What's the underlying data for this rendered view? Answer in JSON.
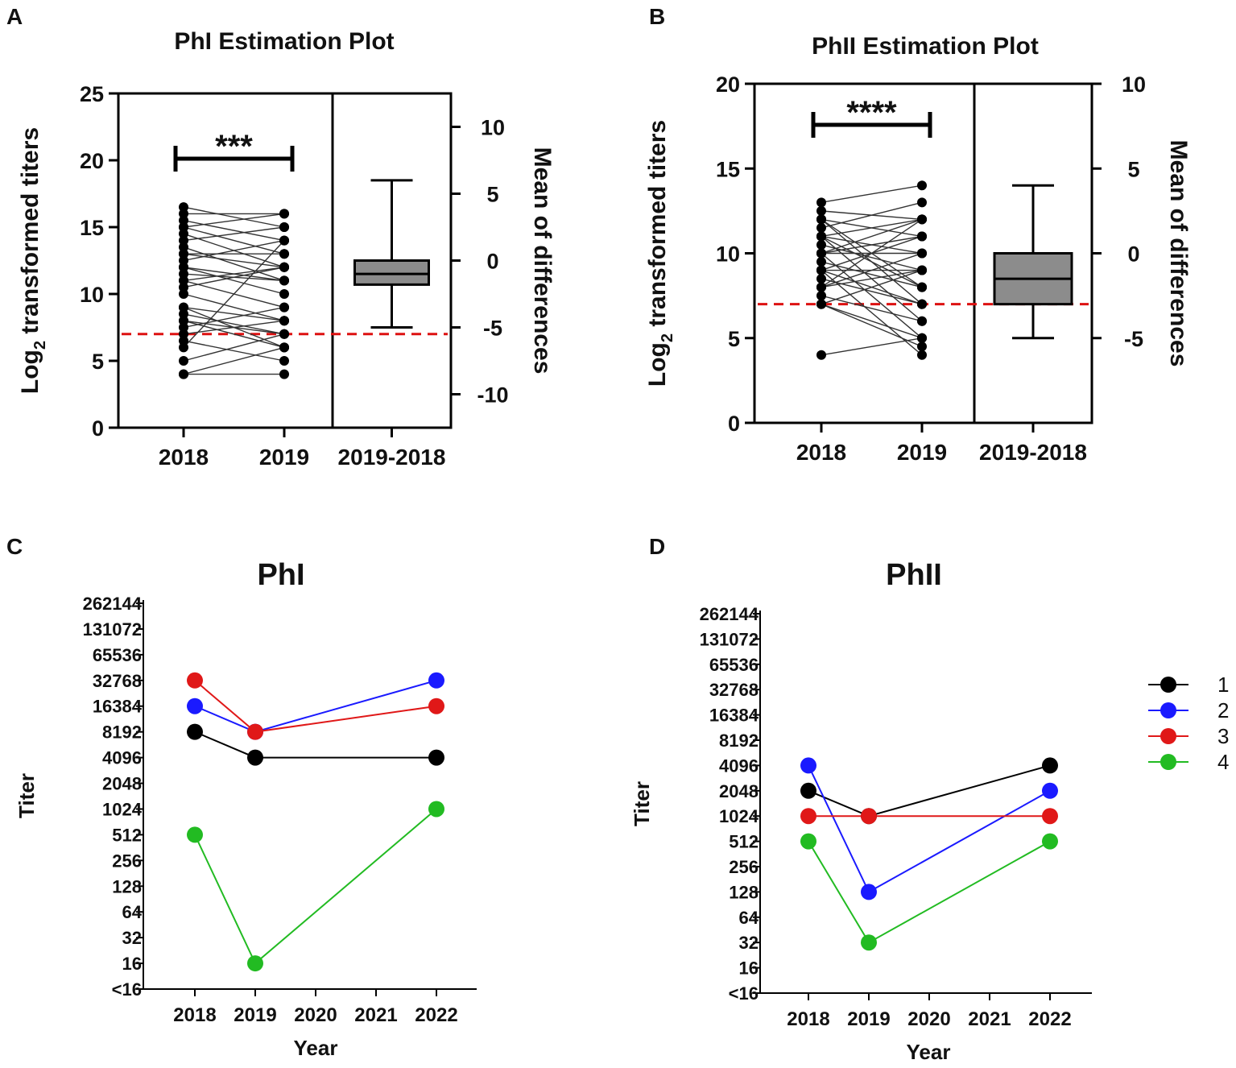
{
  "panel_letters": {
    "A": "A",
    "B": "B",
    "C": "C",
    "D": "D"
  },
  "colors": {
    "black": "#000000",
    "blue": "#1a1aff",
    "red": "#e01818",
    "green": "#22bb22",
    "dashed": "#dd1111",
    "box": "#8c8c8c"
  },
  "chart_data": [
    {
      "panel": "A",
      "type": "estimation",
      "title": "PhI Estimation Plot",
      "ylabel_prefix": "Log",
      "ylabel_sub": "2",
      "ylabel_suffix": " transformed titers",
      "ylabel2": "Mean of differences",
      "ylim": [
        0,
        25
      ],
      "yticks": [
        0,
        5,
        10,
        15,
        20,
        25
      ],
      "y2lim": [
        -12.5,
        12.5
      ],
      "y2ticks": [
        -10,
        -5,
        0,
        5,
        10
      ],
      "categories": [
        "2018",
        "2019",
        "2019-2018"
      ],
      "significance": "***",
      "threshold": 7,
      "pairs": [
        [
          16.5,
          15
        ],
        [
          16,
          16
        ],
        [
          15.5,
          14
        ],
        [
          15,
          13
        ],
        [
          14.5,
          12
        ],
        [
          14,
          15
        ],
        [
          13.5,
          11
        ],
        [
          13,
          12
        ],
        [
          12.5,
          14
        ],
        [
          12,
          10
        ],
        [
          11.5,
          11
        ],
        [
          11,
          9
        ],
        [
          10.5,
          12
        ],
        [
          9,
          8
        ],
        [
          8.5,
          7
        ],
        [
          8,
          6
        ],
        [
          7.5,
          9
        ],
        [
          7,
          8
        ],
        [
          6,
          14
        ],
        [
          5,
          7
        ],
        [
          4,
          4
        ],
        [
          4,
          6
        ],
        [
          10,
          8
        ],
        [
          9,
          6
        ],
        [
          6.5,
          5
        ],
        [
          12,
          11
        ],
        [
          13,
          13
        ],
        [
          15,
          16
        ],
        [
          11,
          12
        ],
        [
          8,
          7
        ]
      ],
      "difference_box": {
        "whisker_low": -5,
        "q1": -1.8,
        "median": -1,
        "q3": 0,
        "whisker_high": 6
      }
    },
    {
      "panel": "B",
      "type": "estimation",
      "title": "PhII Estimation Plot",
      "ylabel_prefix": "Log",
      "ylabel_sub": "2",
      "ylabel_suffix": " transformed titers",
      "ylabel2": "Mean of differences",
      "ylim": [
        0,
        20
      ],
      "yticks": [
        0,
        5,
        10,
        15,
        20
      ],
      "y2lim": [
        -10,
        10
      ],
      "y2ticks": [
        -5,
        0,
        5,
        10
      ],
      "categories": [
        "2018",
        "2019",
        "2019-2018"
      ],
      "significance": "****",
      "threshold": 7,
      "pairs": [
        [
          13,
          14
        ],
        [
          12.5,
          12
        ],
        [
          12,
          11
        ],
        [
          11.5,
          13
        ],
        [
          11,
          10
        ],
        [
          10.5,
          9
        ],
        [
          10,
          12
        ],
        [
          9.5,
          8
        ],
        [
          9,
          11
        ],
        [
          8.5,
          7
        ],
        [
          8,
          10
        ],
        [
          7.5,
          6
        ],
        [
          7,
          9
        ],
        [
          4,
          5
        ],
        [
          12,
          8
        ],
        [
          11,
          6
        ],
        [
          10,
          5
        ],
        [
          9,
          4
        ],
        [
          8,
          12
        ],
        [
          7,
          4.5
        ],
        [
          11,
          12
        ],
        [
          10,
          10
        ],
        [
          9,
          9
        ],
        [
          12,
          7
        ],
        [
          10,
          11
        ],
        [
          8,
          9
        ],
        [
          11,
          8
        ],
        [
          9,
          7
        ],
        [
          7,
          5
        ]
      ],
      "difference_box": {
        "whisker_low": -5,
        "q1": -3,
        "median": -1.5,
        "q3": 0,
        "whisker_high": 4
      }
    },
    {
      "panel": "C",
      "type": "line",
      "title": "PhI",
      "xlabel": "Year",
      "ylabel": "Titer",
      "x": [
        "2018",
        "2019",
        "2020",
        "2021",
        "2022"
      ],
      "y_tick_labels": [
        "<16",
        "16",
        "32",
        "64",
        "128",
        "256",
        "512",
        "1024",
        "2048",
        "4096",
        "8192",
        "16384",
        "32768",
        "65536",
        "131072",
        "262144"
      ],
      "series": [
        {
          "name": "1",
          "color": "#000000",
          "points": [
            [
              "2018",
              8192
            ],
            [
              "2019",
              4096
            ],
            [
              "2022",
              4096
            ]
          ]
        },
        {
          "name": "2",
          "color": "#1a1aff",
          "points": [
            [
              "2018",
              16384
            ],
            [
              "2019",
              8192
            ],
            [
              "2022",
              32768
            ]
          ]
        },
        {
          "name": "3",
          "color": "#e01818",
          "points": [
            [
              "2018",
              32768
            ],
            [
              "2019",
              8192
            ],
            [
              "2022",
              16384
            ]
          ]
        },
        {
          "name": "4",
          "color": "#22bb22",
          "points": [
            [
              "2018",
              512
            ],
            [
              "2019",
              16
            ],
            [
              "2022",
              1024
            ]
          ]
        }
      ]
    },
    {
      "panel": "D",
      "type": "line",
      "title": "PhII",
      "xlabel": "Year",
      "ylabel": "Titer",
      "x": [
        "2018",
        "2019",
        "2020",
        "2021",
        "2022"
      ],
      "y_tick_labels": [
        "<16",
        "16",
        "32",
        "64",
        "128",
        "256",
        "512",
        "1024",
        "2048",
        "4096",
        "8192",
        "16384",
        "32768",
        "65536",
        "131072",
        "262144"
      ],
      "series": [
        {
          "name": "1",
          "color": "#000000",
          "points": [
            [
              "2018",
              2048
            ],
            [
              "2019",
              1024
            ],
            [
              "2022",
              4096
            ]
          ]
        },
        {
          "name": "2",
          "color": "#1a1aff",
          "points": [
            [
              "2018",
              4096
            ],
            [
              "2019",
              128
            ],
            [
              "2022",
              2048
            ]
          ]
        },
        {
          "name": "3",
          "color": "#e01818",
          "points": [
            [
              "2018",
              1024
            ],
            [
              "2019",
              1024
            ],
            [
              "2022",
              1024
            ]
          ]
        },
        {
          "name": "4",
          "color": "#22bb22",
          "points": [
            [
              "2018",
              512
            ],
            [
              "2019",
              32
            ],
            [
              "2022",
              512
            ]
          ]
        }
      ]
    }
  ],
  "legend": [
    {
      "label": "1",
      "color": "#000000"
    },
    {
      "label": "2",
      "color": "#1a1aff"
    },
    {
      "label": "3",
      "color": "#e01818"
    },
    {
      "label": "4",
      "color": "#22bb22"
    }
  ]
}
